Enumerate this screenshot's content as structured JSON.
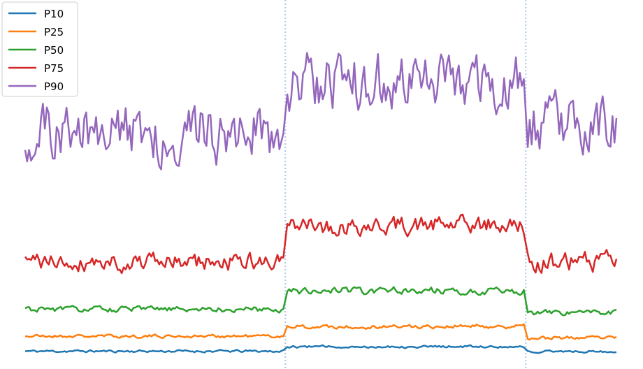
{
  "chart_data": {
    "type": "line",
    "title": "",
    "xlabel": "",
    "ylabel": "",
    "grid": false,
    "legend_position": "top-left",
    "x_range": [
      0,
      300
    ],
    "y_range": [
      0,
      100
    ],
    "vlines": [
      132,
      254
    ],
    "vline_color": "#aec7e8",
    "series": [
      {
        "name": "P10",
        "color": "#1f77b4",
        "segments": [
          {
            "x0": 0,
            "x1": 131,
            "level": 1.5,
            "noise": 0.3,
            "seed": 11
          },
          {
            "x0": 133,
            "x1": 253,
            "level": 2.8,
            "noise": 0.3,
            "seed": 12
          },
          {
            "x0": 255,
            "x1": 300,
            "level": 1.5,
            "noise": 0.3,
            "seed": 13
          }
        ]
      },
      {
        "name": "P25",
        "color": "#ff7f0e",
        "segments": [
          {
            "x0": 0,
            "x1": 131,
            "level": 5.8,
            "noise": 0.4,
            "seed": 21
          },
          {
            "x0": 133,
            "x1": 253,
            "level": 8.6,
            "noise": 0.5,
            "seed": 22
          },
          {
            "x0": 255,
            "x1": 300,
            "level": 5.3,
            "noise": 0.4,
            "seed": 23
          }
        ]
      },
      {
        "name": "P50",
        "color": "#2ca02c",
        "segments": [
          {
            "x0": 0,
            "x1": 131,
            "level": 13.5,
            "noise": 0.7,
            "seed": 31
          },
          {
            "x0": 133,
            "x1": 253,
            "level": 18.8,
            "noise": 0.9,
            "seed": 32
          },
          {
            "x0": 255,
            "x1": 300,
            "level": 12.5,
            "noise": 0.7,
            "seed": 33
          }
        ]
      },
      {
        "name": "P75",
        "color": "#d62728",
        "segments": [
          {
            "x0": 0,
            "x1": 131,
            "level": 27,
            "noise": 2.2,
            "seed": 41
          },
          {
            "x0": 133,
            "x1": 253,
            "level": 37.5,
            "noise": 2.3,
            "seed": 42
          },
          {
            "x0": 255,
            "x1": 300,
            "level": 27,
            "noise": 2.4,
            "seed": 43
          }
        ]
      },
      {
        "name": "P90",
        "color": "#9467bd",
        "segments": [
          {
            "x0": 0,
            "x1": 131,
            "level": 64,
            "noise": 7,
            "seed": 51
          },
          {
            "x0": 133,
            "x1": 253,
            "level": 79,
            "noise": 7,
            "seed": 52
          },
          {
            "x0": 255,
            "x1": 300,
            "level": 66,
            "noise": 7,
            "seed": 53
          }
        ]
      }
    ]
  }
}
